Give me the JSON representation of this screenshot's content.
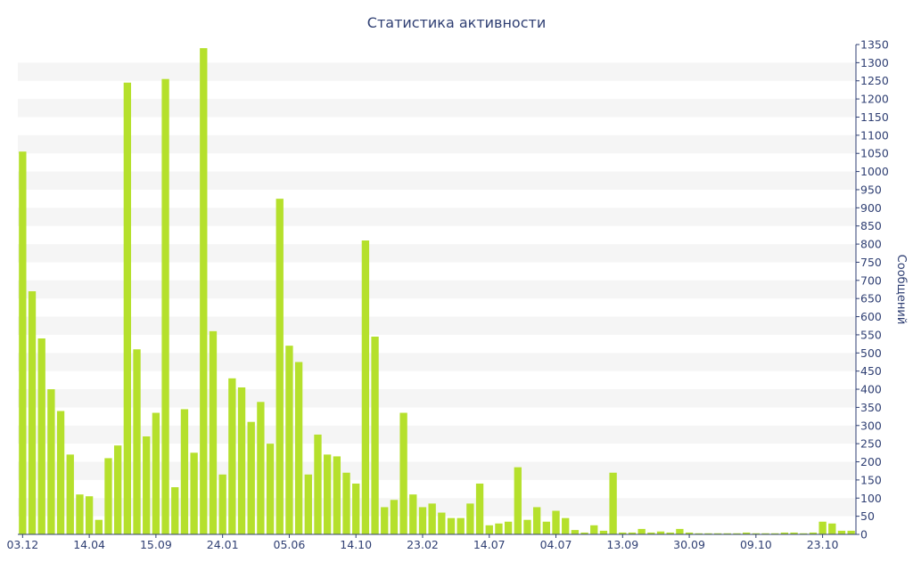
{
  "chart_data": {
    "type": "bar",
    "title": "Статистика активности",
    "ylabel": "Сообщений",
    "xlabel": "",
    "ylim": [
      0,
      1350
    ],
    "y_ticks": [
      0,
      50,
      100,
      150,
      200,
      250,
      300,
      350,
      400,
      450,
      500,
      550,
      600,
      650,
      700,
      750,
      800,
      850,
      900,
      950,
      1000,
      1050,
      1100,
      1150,
      1200,
      1250,
      1300,
      1350
    ],
    "y_axis_side": "right",
    "grid": "alternating horizontal bands",
    "bar_color": "#b5e02c",
    "x_tick_labels": [
      {
        "index": 0,
        "label": "03.12"
      },
      {
        "index": 7,
        "label": "14.04"
      },
      {
        "index": 14,
        "label": "15.09"
      },
      {
        "index": 21,
        "label": "24.01"
      },
      {
        "index": 28,
        "label": "05.06"
      },
      {
        "index": 35,
        "label": "14.10"
      },
      {
        "index": 42,
        "label": "23.02"
      },
      {
        "index": 49,
        "label": "14.07"
      },
      {
        "index": 56,
        "label": "04.07"
      },
      {
        "index": 63,
        "label": "13.09"
      },
      {
        "index": 70,
        "label": "30.09"
      },
      {
        "index": 77,
        "label": "09.10"
      },
      {
        "index": 84,
        "label": "23.10"
      }
    ],
    "values": [
      1055,
      670,
      540,
      400,
      340,
      220,
      110,
      105,
      40,
      210,
      245,
      1245,
      510,
      270,
      335,
      1255,
      130,
      345,
      225,
      1340,
      560,
      165,
      430,
      405,
      310,
      365,
      250,
      925,
      520,
      475,
      165,
      275,
      220,
      215,
      170,
      140,
      810,
      545,
      75,
      95,
      335,
      110,
      75,
      85,
      60,
      45,
      45,
      85,
      140,
      25,
      30,
      35,
      185,
      40,
      75,
      35,
      65,
      45,
      12,
      5,
      25,
      10,
      170,
      5,
      5,
      15,
      5,
      8,
      5,
      15,
      5,
      3,
      3,
      3,
      3,
      3,
      5,
      3,
      3,
      3,
      5,
      5,
      3,
      5,
      35,
      30,
      10,
      10
    ]
  },
  "colors": {
    "bar": "#b5e02c",
    "band": "#f5f5f5",
    "text": "#2f3f73",
    "axis": "#2f3f73"
  }
}
